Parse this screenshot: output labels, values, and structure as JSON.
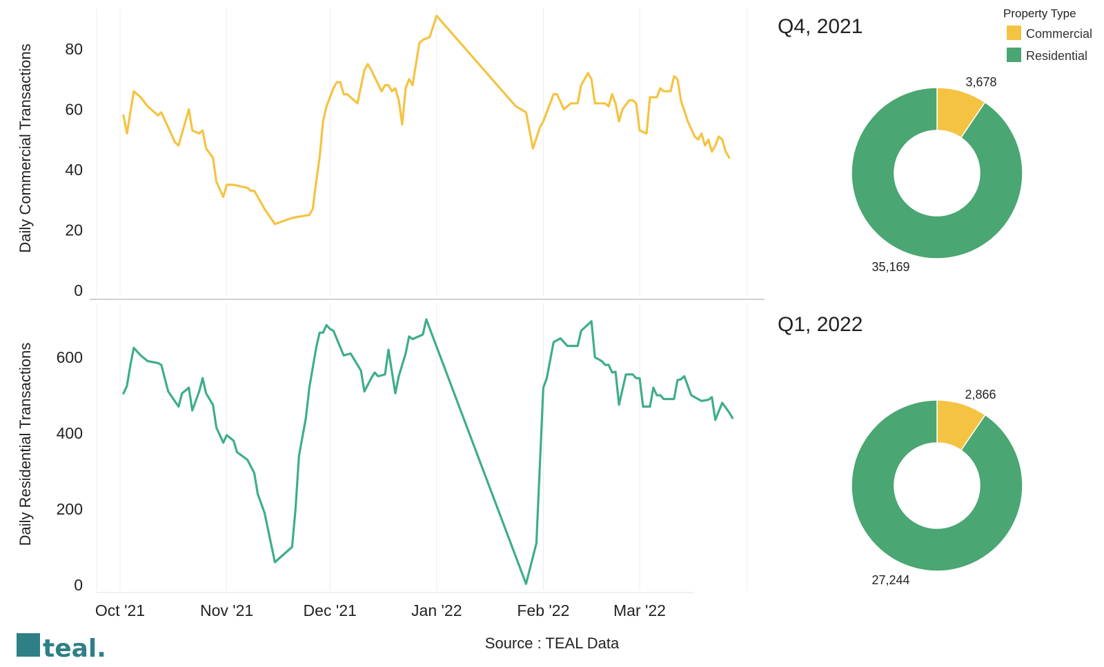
{
  "colors": {
    "commercial": "#F5C342",
    "residential": "#4AA672",
    "commercial_line": "#F5C342",
    "residential_line": "#3EAE86",
    "logo": "#2F7F86"
  },
  "legend": {
    "title": "Property Type",
    "items": [
      {
        "label": "Commercial",
        "color": "#F5C342"
      },
      {
        "label": "Residential",
        "color": "#4AA672"
      }
    ]
  },
  "source": "Source : TEAL Data",
  "logo": {
    "text": "teal."
  },
  "chart_data": [
    {
      "type": "line",
      "name": "commercial-line-chart",
      "ylabel": "Daily Commercial Transactions",
      "ylim": [
        0,
        93
      ],
      "yticks": [
        0,
        20,
        40,
        60,
        80
      ],
      "xticks": [
        {
          "label": "Oct '21",
          "date": "2021-10-01"
        },
        {
          "label": "Nov '21",
          "date": "2021-11-01"
        },
        {
          "label": "Dec '21",
          "date": "2021-12-01"
        },
        {
          "label": "Jan '22",
          "date": "2022-01-01"
        },
        {
          "label": "Feb '22",
          "date": "2022-02-01"
        },
        {
          "label": "Mar '22",
          "date": "2022-03-01"
        }
      ],
      "grid": "vertical",
      "series": [
        {
          "color": "#F5C342",
          "points": [
            [
              "2021-10-02",
              58
            ],
            [
              "2021-10-03",
              52
            ],
            [
              "2021-10-05",
              66
            ],
            [
              "2021-10-07",
              64
            ],
            [
              "2021-10-09",
              61
            ],
            [
              "2021-10-12",
              58
            ],
            [
              "2021-10-13",
              59
            ],
            [
              "2021-10-15",
              54
            ],
            [
              "2021-10-17",
              49
            ],
            [
              "2021-10-18",
              48
            ],
            [
              "2021-10-20",
              56
            ],
            [
              "2021-10-21",
              60
            ],
            [
              "2021-10-22",
              53
            ],
            [
              "2021-10-24",
              52
            ],
            [
              "2021-10-25",
              53
            ],
            [
              "2021-10-26",
              47
            ],
            [
              "2021-10-28",
              44
            ],
            [
              "2021-10-29",
              36
            ],
            [
              "2021-10-31",
              31
            ],
            [
              "2021-11-01",
              35
            ],
            [
              "2021-11-03",
              35
            ],
            [
              "2021-11-07",
              34
            ],
            [
              "2021-11-08",
              33
            ],
            [
              "2021-11-09",
              33
            ],
            [
              "2021-11-12",
              27
            ],
            [
              "2021-11-15",
              22
            ],
            [
              "2021-11-20",
              24
            ],
            [
              "2021-11-25",
              25
            ],
            [
              "2021-11-26",
              27
            ],
            [
              "2021-11-27",
              36
            ],
            [
              "2021-11-28",
              44
            ],
            [
              "2021-11-29",
              56
            ],
            [
              "2021-11-30",
              61
            ],
            [
              "2021-12-02",
              67
            ],
            [
              "2021-12-03",
              69
            ],
            [
              "2021-12-04",
              69
            ],
            [
              "2021-12-05",
              65
            ],
            [
              "2021-12-06",
              65
            ],
            [
              "2021-12-09",
              62
            ],
            [
              "2021-12-11",
              73
            ],
            [
              "2021-12-12",
              75
            ],
            [
              "2021-12-13",
              73
            ],
            [
              "2021-12-16",
              66
            ],
            [
              "2021-12-17",
              68
            ],
            [
              "2021-12-18",
              68
            ],
            [
              "2021-12-19",
              66
            ],
            [
              "2021-12-20",
              67
            ],
            [
              "2021-12-21",
              63
            ],
            [
              "2021-12-22",
              55
            ],
            [
              "2021-12-23",
              67
            ],
            [
              "2021-12-24",
              70
            ],
            [
              "2021-12-25",
              68
            ],
            [
              "2021-12-27",
              82
            ],
            [
              "2021-12-28",
              83
            ],
            [
              "2021-12-30",
              84
            ],
            [
              "2022-01-01",
              91
            ],
            [
              "2022-01-24",
              61
            ],
            [
              "2022-01-27",
              59
            ],
            [
              "2022-01-29",
              47
            ],
            [
              "2022-01-31",
              54
            ],
            [
              "2022-02-01",
              56
            ],
            [
              "2022-02-03",
              62
            ],
            [
              "2022-02-04",
              65
            ],
            [
              "2022-02-05",
              65
            ],
            [
              "2022-02-07",
              60
            ],
            [
              "2022-02-09",
              62
            ],
            [
              "2022-02-11",
              62
            ],
            [
              "2022-02-12",
              68
            ],
            [
              "2022-02-13",
              70
            ],
            [
              "2022-02-14",
              72
            ],
            [
              "2022-02-15",
              70
            ],
            [
              "2022-02-16",
              62
            ],
            [
              "2022-02-19",
              62
            ],
            [
              "2022-02-20",
              61
            ],
            [
              "2022-02-21",
              65
            ],
            [
              "2022-02-22",
              62
            ],
            [
              "2022-02-23",
              56
            ],
            [
              "2022-02-24",
              60
            ],
            [
              "2022-02-26",
              63
            ],
            [
              "2022-02-27",
              63
            ],
            [
              "2022-02-28",
              62
            ],
            [
              "2022-03-01",
              53
            ],
            [
              "2022-03-03",
              52
            ],
            [
              "2022-03-04",
              64
            ],
            [
              "2022-03-05",
              64
            ],
            [
              "2022-03-06",
              64
            ],
            [
              "2022-03-07",
              67
            ],
            [
              "2022-03-08",
              66
            ],
            [
              "2022-03-09",
              66
            ],
            [
              "2022-03-10",
              66
            ],
            [
              "2022-03-11",
              71
            ],
            [
              "2022-03-12",
              70
            ],
            [
              "2022-03-13",
              63
            ],
            [
              "2022-03-15",
              56
            ],
            [
              "2022-03-17",
              51
            ],
            [
              "2022-03-18",
              50
            ],
            [
              "2022-03-19",
              52
            ],
            [
              "2022-03-20",
              48
            ],
            [
              "2022-03-21",
              50
            ],
            [
              "2022-03-22",
              46
            ],
            [
              "2022-03-23",
              48
            ],
            [
              "2022-03-24",
              51
            ],
            [
              "2022-03-25",
              50
            ],
            [
              "2022-03-26",
              46
            ],
            [
              "2022-03-27",
              44
            ]
          ]
        }
      ]
    },
    {
      "type": "line",
      "name": "residential-line-chart",
      "ylabel": "Daily Residential Transactions",
      "ylim": [
        0,
        760
      ],
      "yticks": [
        0,
        200,
        400,
        600
      ],
      "xticks": [
        {
          "label": "Oct '21",
          "date": "2021-10-01"
        },
        {
          "label": "Nov '21",
          "date": "2021-11-01"
        },
        {
          "label": "Dec '21",
          "date": "2021-12-01"
        },
        {
          "label": "Jan '22",
          "date": "2022-01-01"
        },
        {
          "label": "Feb '22",
          "date": "2022-02-01"
        },
        {
          "label": "Mar '22",
          "date": "2022-03-01"
        }
      ],
      "grid": "vertical",
      "series": [
        {
          "color": "#3EAE86",
          "points": [
            [
              "2021-10-02",
              505
            ],
            [
              "2021-10-03",
              525
            ],
            [
              "2021-10-04",
              580
            ],
            [
              "2021-10-05",
              625
            ],
            [
              "2021-10-07",
              605
            ],
            [
              "2021-10-09",
              590
            ],
            [
              "2021-10-12",
              585
            ],
            [
              "2021-10-13",
              580
            ],
            [
              "2021-10-15",
              510
            ],
            [
              "2021-10-18",
              470
            ],
            [
              "2021-10-19",
              505
            ],
            [
              "2021-10-21",
              520
            ],
            [
              "2021-10-22",
              460
            ],
            [
              "2021-10-24",
              510
            ],
            [
              "2021-10-25",
              545
            ],
            [
              "2021-10-26",
              505
            ],
            [
              "2021-10-28",
              475
            ],
            [
              "2021-10-29",
              415
            ],
            [
              "2021-10-31",
              375
            ],
            [
              "2021-11-01",
              395
            ],
            [
              "2021-11-03",
              380
            ],
            [
              "2021-11-04",
              350
            ],
            [
              "2021-11-07",
              330
            ],
            [
              "2021-11-09",
              295
            ],
            [
              "2021-11-10",
              240
            ],
            [
              "2021-11-12",
              190
            ],
            [
              "2021-11-15",
              60
            ],
            [
              "2021-11-20",
              100
            ],
            [
              "2021-11-21",
              200
            ],
            [
              "2021-11-22",
              340
            ],
            [
              "2021-11-24",
              440
            ],
            [
              "2021-11-25",
              520
            ],
            [
              "2021-11-27",
              625
            ],
            [
              "2021-11-28",
              665
            ],
            [
              "2021-11-29",
              665
            ],
            [
              "2021-11-30",
              685
            ],
            [
              "2021-12-01",
              675
            ],
            [
              "2021-12-02",
              670
            ],
            [
              "2021-12-05",
              605
            ],
            [
              "2021-12-07",
              610
            ],
            [
              "2021-12-09",
              580
            ],
            [
              "2021-12-10",
              565
            ],
            [
              "2021-12-11",
              510
            ],
            [
              "2021-12-13",
              545
            ],
            [
              "2021-12-14",
              560
            ],
            [
              "2021-12-15",
              550
            ],
            [
              "2021-12-17",
              555
            ],
            [
              "2021-12-18",
              620
            ],
            [
              "2021-12-20",
              505
            ],
            [
              "2021-12-21",
              550
            ],
            [
              "2021-12-23",
              610
            ],
            [
              "2021-12-24",
              655
            ],
            [
              "2021-12-25",
              648
            ],
            [
              "2021-12-28",
              660
            ],
            [
              "2021-12-29",
              700
            ],
            [
              "2022-01-27",
              3
            ],
            [
              "2022-01-30",
              110
            ],
            [
              "2022-02-01",
              520
            ],
            [
              "2022-02-02",
              545
            ],
            [
              "2022-02-04",
              640
            ],
            [
              "2022-02-05",
              645
            ],
            [
              "2022-02-06",
              650
            ],
            [
              "2022-02-08",
              630
            ],
            [
              "2022-02-11",
              630
            ],
            [
              "2022-02-12",
              670
            ],
            [
              "2022-02-15",
              695
            ],
            [
              "2022-02-16",
              600
            ],
            [
              "2022-02-18",
              590
            ],
            [
              "2022-02-19",
              580
            ],
            [
              "2022-02-20",
              580
            ],
            [
              "2022-02-21",
              560
            ],
            [
              "2022-02-22",
              562
            ],
            [
              "2022-02-23",
              475
            ],
            [
              "2022-02-25",
              555
            ],
            [
              "2022-02-27",
              555
            ],
            [
              "2022-02-28",
              545
            ],
            [
              "2022-03-01",
              545
            ],
            [
              "2022-03-02",
              470
            ],
            [
              "2022-03-04",
              470
            ],
            [
              "2022-03-05",
              520
            ],
            [
              "2022-03-06",
              500
            ],
            [
              "2022-03-07",
              500
            ],
            [
              "2022-03-08",
              490
            ],
            [
              "2022-03-11",
              490
            ],
            [
              "2022-03-12",
              540
            ],
            [
              "2022-03-13",
              542
            ],
            [
              "2022-03-14",
              550
            ],
            [
              "2022-03-16",
              500
            ],
            [
              "2022-03-19",
              485
            ],
            [
              "2022-03-21",
              488
            ],
            [
              "2022-03-22",
              495
            ],
            [
              "2022-03-23",
              435
            ],
            [
              "2022-03-25",
              480
            ],
            [
              "2022-03-27",
              455
            ],
            [
              "2022-03-28",
              440
            ]
          ]
        }
      ]
    },
    {
      "type": "pie",
      "name": "q4-2021-donut",
      "title": "Q4, 2021",
      "slices": [
        {
          "label": "Commercial",
          "value": 3678,
          "display": "3,678",
          "color": "#F5C342"
        },
        {
          "label": "Residential",
          "value": 35169,
          "display": "35,169",
          "color": "#4AA672"
        }
      ]
    },
    {
      "type": "pie",
      "name": "q1-2022-donut",
      "title": "Q1, 2022",
      "slices": [
        {
          "label": "Commercial",
          "value": 2866,
          "display": "2,866",
          "color": "#F5C342"
        },
        {
          "label": "Residential",
          "value": 27244,
          "display": "27,244",
          "color": "#4AA672"
        }
      ]
    }
  ]
}
